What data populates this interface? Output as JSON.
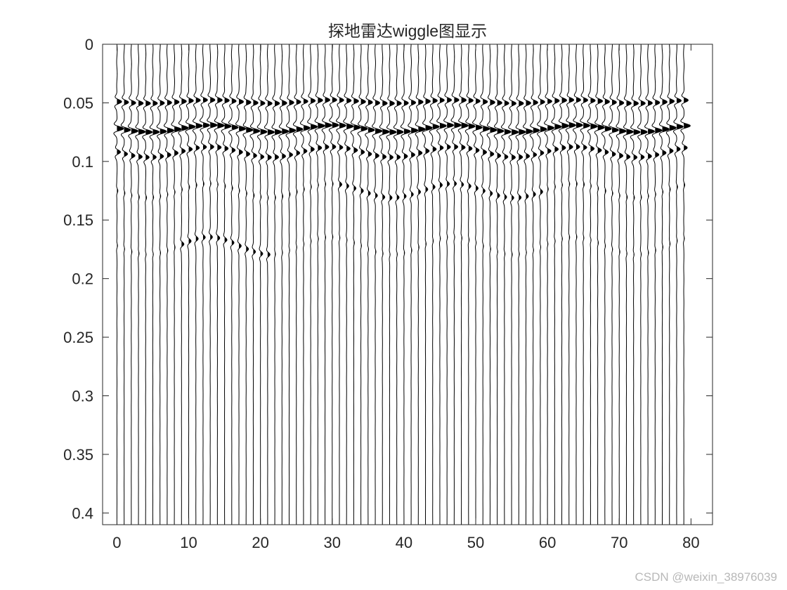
{
  "chart_data": {
    "type": "line",
    "title": "探地雷达wiggle图显示",
    "xlabel": "",
    "ylabel": "",
    "xlim": [
      -2,
      83
    ],
    "ylim": [
      0,
      0.41
    ],
    "y_reversed": true,
    "xticks": [
      0,
      10,
      20,
      30,
      40,
      50,
      60,
      70,
      80
    ],
    "xtick_labels": [
      "0",
      "10",
      "20",
      "30",
      "40",
      "50",
      "60",
      "70",
      "80"
    ],
    "yticks": [
      0,
      0.05,
      0.1,
      0.15,
      0.2,
      0.25,
      0.3,
      0.35,
      0.4
    ],
    "ytick_labels": [
      "0",
      "0.05",
      "0.1",
      "0.15",
      "0.2",
      "0.25",
      "0.3",
      "0.35",
      "0.4"
    ],
    "trace_count": 80,
    "trace_positions": [
      0,
      79
    ],
    "time_range": [
      0,
      0.41
    ],
    "fill": "positive-amplitude black",
    "series": [
      {
        "wavelet_time": 0.049,
        "peak_amplitude": 0.9
      },
      {
        "wavelet_time": 0.072,
        "peak_amplitude": 1.3
      },
      {
        "wavelet_time": 0.092,
        "peak_amplitude": 0.7
      },
      {
        "wavelet_time": 0.125,
        "peak_amplitude": 0.45
      },
      {
        "wavelet_time": 0.172,
        "peak_amplitude": 0.45
      }
    ],
    "grid": false,
    "colors": {
      "trace": "#000000",
      "axes": "#262626"
    }
  },
  "watermark": "CSDN @weixin_38976039"
}
